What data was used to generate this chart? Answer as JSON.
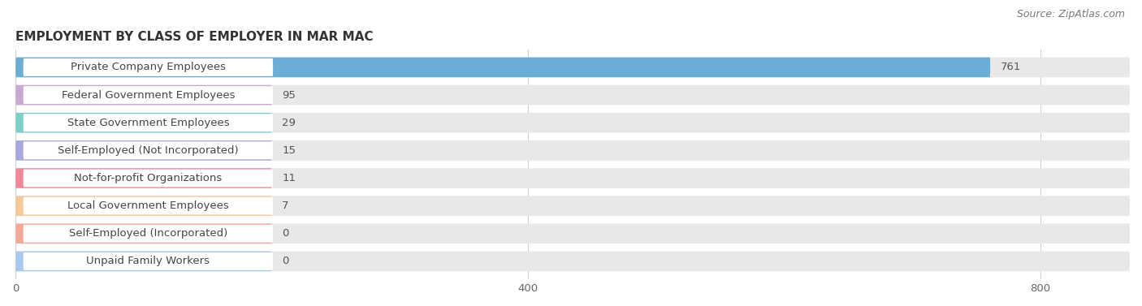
{
  "title": "EMPLOYMENT BY CLASS OF EMPLOYER IN MAR MAC",
  "source": "Source: ZipAtlas.com",
  "categories": [
    "Private Company Employees",
    "Federal Government Employees",
    "State Government Employees",
    "Self-Employed (Not Incorporated)",
    "Not-for-profit Organizations",
    "Local Government Employees",
    "Self-Employed (Incorporated)",
    "Unpaid Family Workers"
  ],
  "values": [
    761,
    95,
    29,
    15,
    11,
    7,
    0,
    0
  ],
  "bar_colors": [
    "#6aaed6",
    "#c9a8d4",
    "#7ececa",
    "#a8a8e0",
    "#f4869a",
    "#f7c99a",
    "#f4a898",
    "#a8c8f0"
  ],
  "bg_bar_color": "#e8e8e8",
  "label_bg_color": "#ffffff",
  "background_color": "#ffffff",
  "xlim_max": 870,
  "xticks": [
    0,
    400,
    800
  ],
  "title_fontsize": 11,
  "label_fontsize": 9.5,
  "value_fontsize": 9.5,
  "source_fontsize": 9
}
